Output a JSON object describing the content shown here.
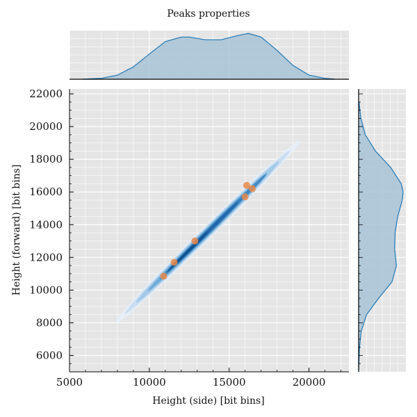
{
  "chart_data": {
    "type": "scatter",
    "title": "Peaks properties",
    "xlabel": "Height (side) [bit bins]",
    "ylabel": "Height (forward) [bit bins]",
    "xlim": [
      5000,
      22500
    ],
    "ylim": [
      5000,
      22300
    ],
    "xticks": [
      "5000",
      "10000",
      "15000",
      "20000"
    ],
    "yticks": [
      "6000",
      "8000",
      "10000",
      "12000",
      "14000",
      "16000",
      "18000",
      "20000",
      "22000"
    ],
    "grid": true,
    "colors": {
      "points": "#e8894a",
      "kde": "#1f77b4",
      "fill": "#a8c3d6",
      "panel": "#e5e5e5"
    },
    "points": [
      {
        "x": 10900,
        "y": 10850
      },
      {
        "x": 11550,
        "y": 11700
      },
      {
        "x": 12850,
        "y": 13000
      },
      {
        "x": 16000,
        "y": 15700
      },
      {
        "x": 16100,
        "y": 16400
      },
      {
        "x": 16450,
        "y": 16200
      }
    ],
    "density_extent": {
      "x_from": 7900,
      "y_from": 8000,
      "x_to": 19400,
      "y_to": 19100
    },
    "marginal_x": {
      "x": [
        5800,
        7000,
        8000,
        9000,
        10000,
        11000,
        12000,
        12500,
        13500,
        14500,
        15500,
        16200,
        17000,
        18000,
        19000,
        20000,
        21000,
        21600
      ],
      "density": [
        0.003,
        0.02,
        0.09,
        0.27,
        0.55,
        0.82,
        0.92,
        0.92,
        0.86,
        0.86,
        0.95,
        1.0,
        0.92,
        0.63,
        0.3,
        0.09,
        0.02,
        0.005
      ]
    },
    "marginal_y": {
      "y": [
        5000,
        6500,
        7500,
        8500,
        9500,
        10500,
        11500,
        12500,
        13500,
        14500,
        15500,
        16000,
        16500,
        17500,
        18500,
        19500,
        20500,
        21500
      ],
      "density": [
        0.0,
        0.02,
        0.06,
        0.18,
        0.45,
        0.75,
        0.85,
        0.81,
        0.82,
        0.88,
        0.98,
        1.0,
        0.96,
        0.72,
        0.38,
        0.15,
        0.05,
        0.01
      ]
    }
  }
}
